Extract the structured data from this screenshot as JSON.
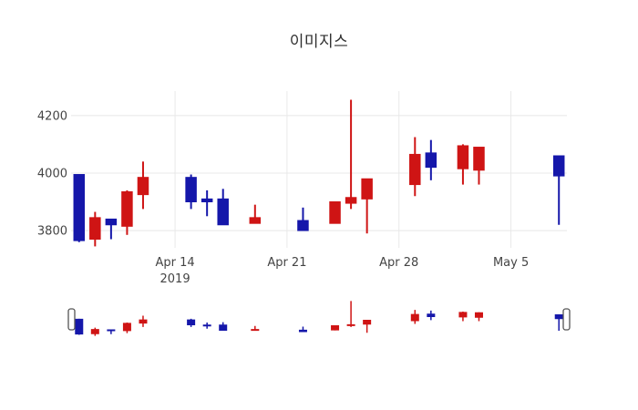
{
  "page": {
    "title": "이미지스"
  },
  "chart_data": {
    "type": "candlestick",
    "title": "이미지스",
    "xlabel": "",
    "ylabel": "",
    "grid": true,
    "legend": "none",
    "colors": {
      "increasing": "#cf1414",
      "decreasing": "#1517aa",
      "gridline": "#e8e8e8",
      "tick_text": "#444444",
      "background": "#ffffff",
      "slider_handle_fill": "#ffffff",
      "slider_handle_stroke": "#555555"
    },
    "y_axis": {
      "ticks": [
        3800,
        4000,
        4200
      ],
      "range": [
        3740,
        4285
      ]
    },
    "x_axis": {
      "ticks": [
        {
          "label": "Apr 14",
          "sublabel": "2019",
          "day": 6
        },
        {
          "label": "Apr 21",
          "sublabel": "",
          "day": 13
        },
        {
          "label": "Apr 28",
          "sublabel": "",
          "day": 20
        },
        {
          "label": "May 5",
          "sublabel": "",
          "day": 27
        }
      ],
      "range_days": [
        -0.5,
        30.5
      ]
    },
    "candles": [
      {
        "date": "Apr 8",
        "day": 0,
        "open": 3995,
        "high": 3995,
        "low": 3760,
        "close": 3765
      },
      {
        "date": "Apr 9",
        "day": 1,
        "open": 3770,
        "high": 3865,
        "low": 3745,
        "close": 3845
      },
      {
        "date": "Apr 10",
        "day": 2,
        "open": 3840,
        "high": 3840,
        "low": 3770,
        "close": 3820
      },
      {
        "date": "Apr 11",
        "day": 3,
        "open": 3815,
        "high": 3940,
        "low": 3785,
        "close": 3935
      },
      {
        "date": "Apr 12",
        "day": 4,
        "open": 3925,
        "high": 4040,
        "low": 3875,
        "close": 3985
      },
      {
        "date": "Apr 15",
        "day": 7,
        "open": 3985,
        "high": 3995,
        "low": 3875,
        "close": 3900
      },
      {
        "date": "Apr 16",
        "day": 8,
        "open": 3910,
        "high": 3940,
        "low": 3850,
        "close": 3900
      },
      {
        "date": "Apr 17",
        "day": 9,
        "open": 3910,
        "high": 3945,
        "low": 3820,
        "close": 3820
      },
      {
        "date": "Apr 19",
        "day": 11,
        "open": 3825,
        "high": 3890,
        "low": 3825,
        "close": 3845
      },
      {
        "date": "Apr 22",
        "day": 14,
        "open": 3835,
        "high": 3880,
        "low": 3800,
        "close": 3800
      },
      {
        "date": "Apr 24",
        "day": 16,
        "open": 3825,
        "high": 3900,
        "low": 3825,
        "close": 3900
      },
      {
        "date": "Apr 25",
        "day": 17,
        "open": 3895,
        "high": 4255,
        "low": 3875,
        "close": 3915
      },
      {
        "date": "Apr 26",
        "day": 18,
        "open": 3910,
        "high": 3980,
        "low": 3790,
        "close": 3980
      },
      {
        "date": "Apr 29",
        "day": 21,
        "open": 3960,
        "high": 4125,
        "low": 3920,
        "close": 4065
      },
      {
        "date": "Apr 30",
        "day": 22,
        "open": 4070,
        "high": 4115,
        "low": 3975,
        "close": 4020
      },
      {
        "date": "May 2",
        "day": 24,
        "open": 4015,
        "high": 4100,
        "low": 3960,
        "close": 4095
      },
      {
        "date": "May 3",
        "day": 25,
        "open": 4010,
        "high": 4090,
        "low": 3960,
        "close": 4090
      },
      {
        "date": "May 8",
        "day": 30,
        "open": 4060,
        "high": 4060,
        "low": 3820,
        "close": 3990
      }
    ],
    "rangeslider": {
      "visible": true,
      "value_range": [
        3740,
        4260
      ],
      "handles": [
        "left",
        "right"
      ]
    }
  }
}
